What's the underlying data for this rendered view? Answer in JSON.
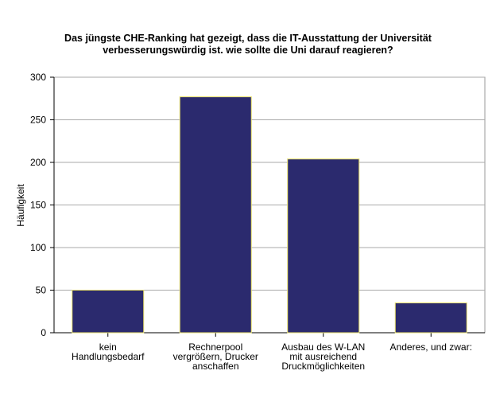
{
  "chart_data": {
    "type": "bar",
    "title": [
      "Das jüngste CHE-Ranking hat gezeigt, dass die IT-Ausstattung der Universität",
      "verbesserungswürdig ist. wie sollte die Uni darauf reagieren?"
    ],
    "y_label": "Häufigkeit",
    "categories": [
      [
        "kein",
        "Handlungsbedarf"
      ],
      [
        "Rechnerpool",
        "vergrößern, Drucker",
        "anschaffen"
      ],
      [
        "Ausbau des W-LAN",
        "mit ausreichend",
        "Druckmöglichkeiten"
      ],
      [
        "Anderes, und zwar:"
      ]
    ],
    "values": [
      50,
      277,
      204,
      35
    ],
    "color": "#2b2a6e",
    "ylim": [
      0,
      300
    ],
    "yticks": [
      0,
      50,
      100,
      150,
      200,
      250,
      300
    ],
    "grid": true
  }
}
